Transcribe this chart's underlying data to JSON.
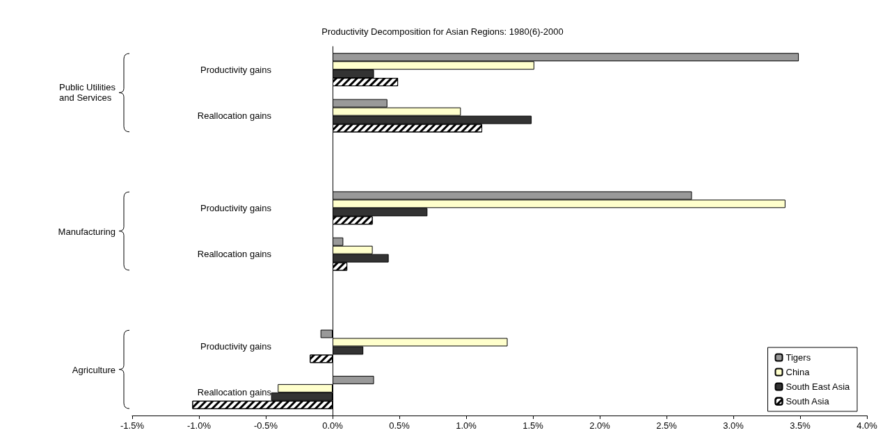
{
  "chart_data": {
    "type": "bar",
    "orientation": "horizontal",
    "title": "Productivity Decomposition for Asian Regions: 1980(6)-2000",
    "categories": [
      "Productivity gains",
      "Reallocation gains",
      null,
      "Productivity gains",
      "Reallocation gains",
      null,
      "Productivity gains",
      "Reallocation gains"
    ],
    "series": [
      {
        "name": "Tigers",
        "color": "#999999",
        "values": [
          3.49,
          0.41,
          null,
          2.69,
          0.08,
          null,
          -0.09,
          0.31
        ]
      },
      {
        "name": "China",
        "color": "#ffffcc",
        "values": [
          1.51,
          0.96,
          null,
          3.39,
          0.3,
          null,
          1.31,
          -0.41
        ]
      },
      {
        "name": "South East Asia",
        "color": "#333333",
        "values": [
          0.31,
          1.49,
          null,
          0.71,
          0.42,
          null,
          0.23,
          -0.46
        ]
      },
      {
        "name": "South Asia",
        "color": "#ffffff",
        "values": [
          0.49,
          1.12,
          null,
          0.3,
          0.11,
          null,
          -0.17,
          -1.05
        ]
      }
    ],
    "xlim": [
      -1.5,
      4.0
    ],
    "xticks": [
      {
        "value": -1.5,
        "label": "-1.5%"
      },
      {
        "value": -1.0,
        "label": "-1.0%"
      },
      {
        "value": -0.5,
        "label": "-0.5%"
      },
      {
        "value": 0,
        "label": "0.0%"
      },
      {
        "value": 0.5,
        "label": "0.5%"
      },
      {
        "value": 1.0,
        "label": "1.0%"
      },
      {
        "value": 1.5,
        "label": "1.5%"
      },
      {
        "value": 2.0,
        "label": "2.0%"
      },
      {
        "value": 2.5,
        "label": "2.5%"
      },
      {
        "value": 3.0,
        "label": "3.0%"
      },
      {
        "value": 3.5,
        "label": "3.5%"
      },
      {
        "value": 4.0,
        "label": "4.0%"
      }
    ],
    "annotations": [
      "Public Utilities\nand Services",
      "Manufacturing",
      "Agriculture"
    ],
    "legend": "bottom right"
  }
}
